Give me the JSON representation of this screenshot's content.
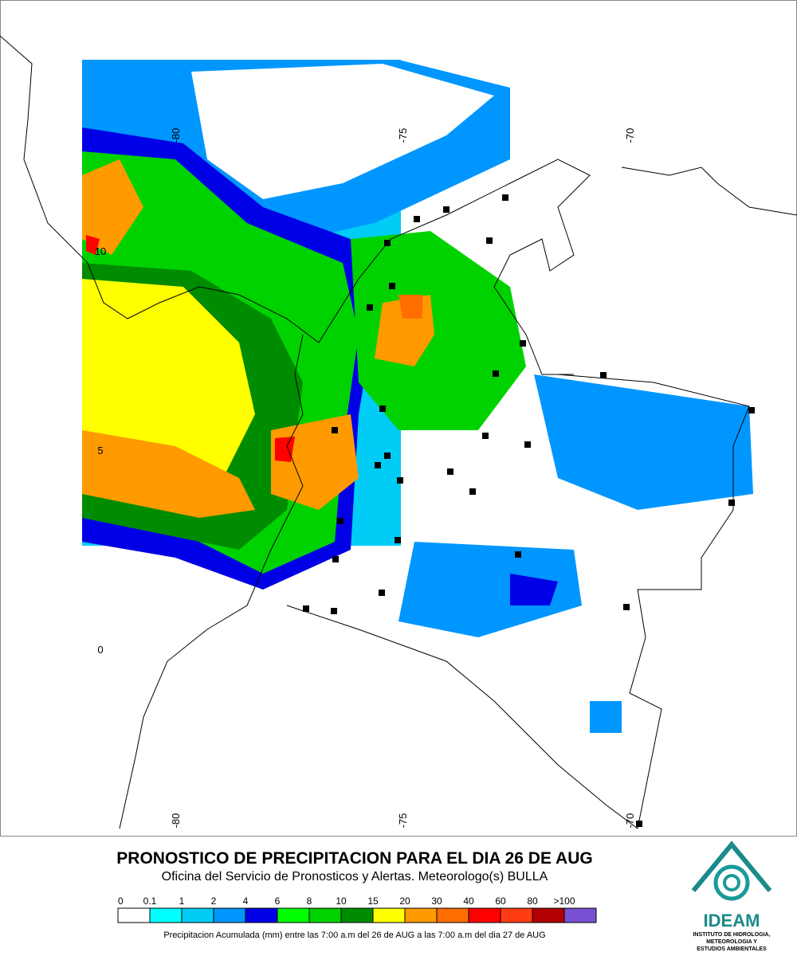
{
  "map": {
    "title": "PRONOSTICO DE PRECIPITACION PARA EL DIA 26 DE AUG",
    "subtitle": "Oficina del Servicio de Pronosticos y Alertas. Meteorologo(s) BULLA",
    "lon_ticks": [
      -80,
      -75,
      -70
    ],
    "lat_ticks": [
      10,
      5,
      0
    ],
    "legend": {
      "labels": [
        0,
        0.1,
        1,
        2,
        4,
        6,
        8,
        10,
        15,
        20,
        30,
        40,
        60,
        80,
        {
          "value": 100,
          "label": ">100"
        }
      ],
      "colors": [
        "#ffffff",
        "#00ffff",
        "#00ccf5",
        "#0096ff",
        "#0000e6",
        "#00ff00",
        "#00d200",
        "#008c00",
        "#ffff00",
        "#ff9a00",
        "#ff6e00",
        "#ff0000",
        "#ff3c14",
        "#b40000",
        "#7850d2"
      ]
    },
    "caption": "Precipitacion Acumulada (mm) entre las 7:00 a.m del 26 de AUG a las 7:00 a.m del dia 27 de AUG",
    "logo": {
      "name": "IDEAM",
      "lines": [
        "INSTITUTO DE HIDROLOGIA,",
        "METEOROLOGIA Y",
        "ESTUDIOS AMBIENTALES"
      ]
    }
  }
}
